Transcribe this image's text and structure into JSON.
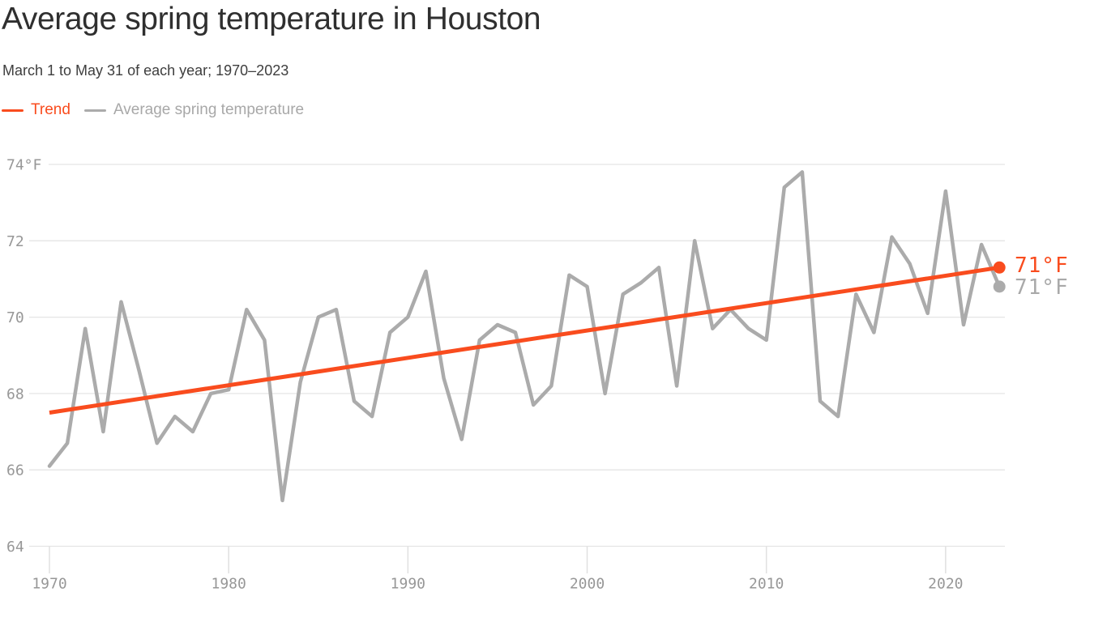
{
  "header": {
    "title": "Average spring temperature in Houston",
    "subtitle": "March 1 to May 31 of each year; 1970–2023"
  },
  "legend": {
    "items": [
      {
        "label": "Trend",
        "color": "#F94C1E"
      },
      {
        "label": "Average spring temperature",
        "color": "#ABABAB"
      }
    ]
  },
  "chart_data": {
    "type": "line",
    "title": "Average spring temperature in Houston",
    "subtitle": "March 1 to May 31 of each year; 1970–2023",
    "unit": "°F",
    "x": [
      1970,
      1971,
      1972,
      1973,
      1974,
      1975,
      1976,
      1977,
      1978,
      1979,
      1980,
      1981,
      1982,
      1983,
      1984,
      1985,
      1986,
      1987,
      1988,
      1989,
      1990,
      1991,
      1992,
      1993,
      1994,
      1995,
      1996,
      1997,
      1998,
      1999,
      2000,
      2001,
      2002,
      2003,
      2004,
      2005,
      2006,
      2007,
      2008,
      2009,
      2010,
      2011,
      2012,
      2013,
      2014,
      2015,
      2016,
      2017,
      2018,
      2019,
      2020,
      2021,
      2022,
      2023
    ],
    "series": [
      {
        "name": "Average spring temperature",
        "color": "#ABABAB",
        "values": [
          66.1,
          66.7,
          69.7,
          67.0,
          70.4,
          68.6,
          66.7,
          67.4,
          67.0,
          68.0,
          68.1,
          70.2,
          69.4,
          65.2,
          68.3,
          70.0,
          70.2,
          67.8,
          67.4,
          69.6,
          70.0,
          71.2,
          68.4,
          66.8,
          69.4,
          69.8,
          69.6,
          67.7,
          68.2,
          71.1,
          70.8,
          68.0,
          70.6,
          70.9,
          71.3,
          68.2,
          72.0,
          69.7,
          70.2,
          69.7,
          69.4,
          73.4,
          73.8,
          67.8,
          67.4,
          70.6,
          69.6,
          72.1,
          71.4,
          70.1,
          73.3,
          69.8,
          71.9,
          70.8
        ]
      },
      {
        "name": "Trend",
        "color": "#F94C1E",
        "x": [
          1970,
          2023
        ],
        "values": [
          67.5,
          71.3
        ]
      }
    ],
    "yticks": [
      {
        "value": 74,
        "label": "74°F"
      },
      {
        "value": 72,
        "label": "72"
      },
      {
        "value": 70,
        "label": "70"
      },
      {
        "value": 68,
        "label": "68"
      },
      {
        "value": 66,
        "label": "66"
      },
      {
        "value": 64,
        "label": "64"
      }
    ],
    "xticks": [
      "1970",
      "1980",
      "1990",
      "2000",
      "2010",
      "2020"
    ],
    "ylim": [
      64,
      74.6
    ],
    "xlim": [
      1970,
      2023
    ],
    "grid": true,
    "legend_position": "top-left",
    "grid_color": "#E5E5E5",
    "tick_color": "#E0E0E0",
    "axis_text_color": "#979797",
    "end_labels": [
      {
        "text": "71°F",
        "series": "Trend",
        "color": "#F94C1E"
      },
      {
        "text": "71°F",
        "series": "Average spring temperature",
        "color": "#A9A9A9"
      }
    ]
  }
}
